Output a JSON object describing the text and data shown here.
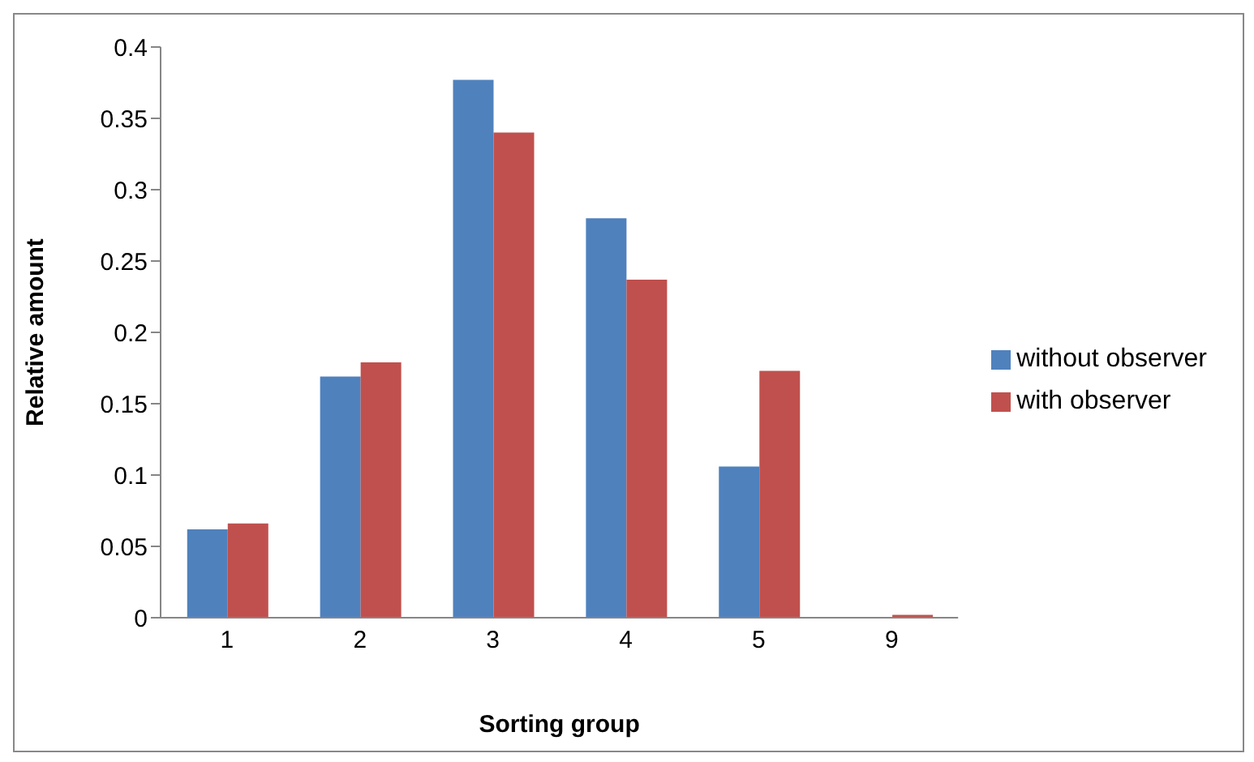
{
  "chart_data": {
    "type": "bar",
    "xlabel": "Sorting group",
    "ylabel": "Relative amount",
    "categories": [
      "1",
      "2",
      "3",
      "4",
      "5",
      "9"
    ],
    "series": [
      {
        "name": "without observer",
        "color": "#4f81bd",
        "values": [
          0.062,
          0.169,
          0.377,
          0.28,
          0.106,
          0
        ]
      },
      {
        "name": "with observer",
        "color": "#c0504d",
        "values": [
          0.066,
          0.179,
          0.34,
          0.237,
          0.173,
          0.002
        ]
      }
    ],
    "ylim": [
      0,
      0.4
    ],
    "yticks": [
      0,
      0.05,
      0.1,
      0.15,
      0.2,
      0.25,
      0.3,
      0.35,
      0.4
    ],
    "grid": false,
    "legend": "right"
  }
}
